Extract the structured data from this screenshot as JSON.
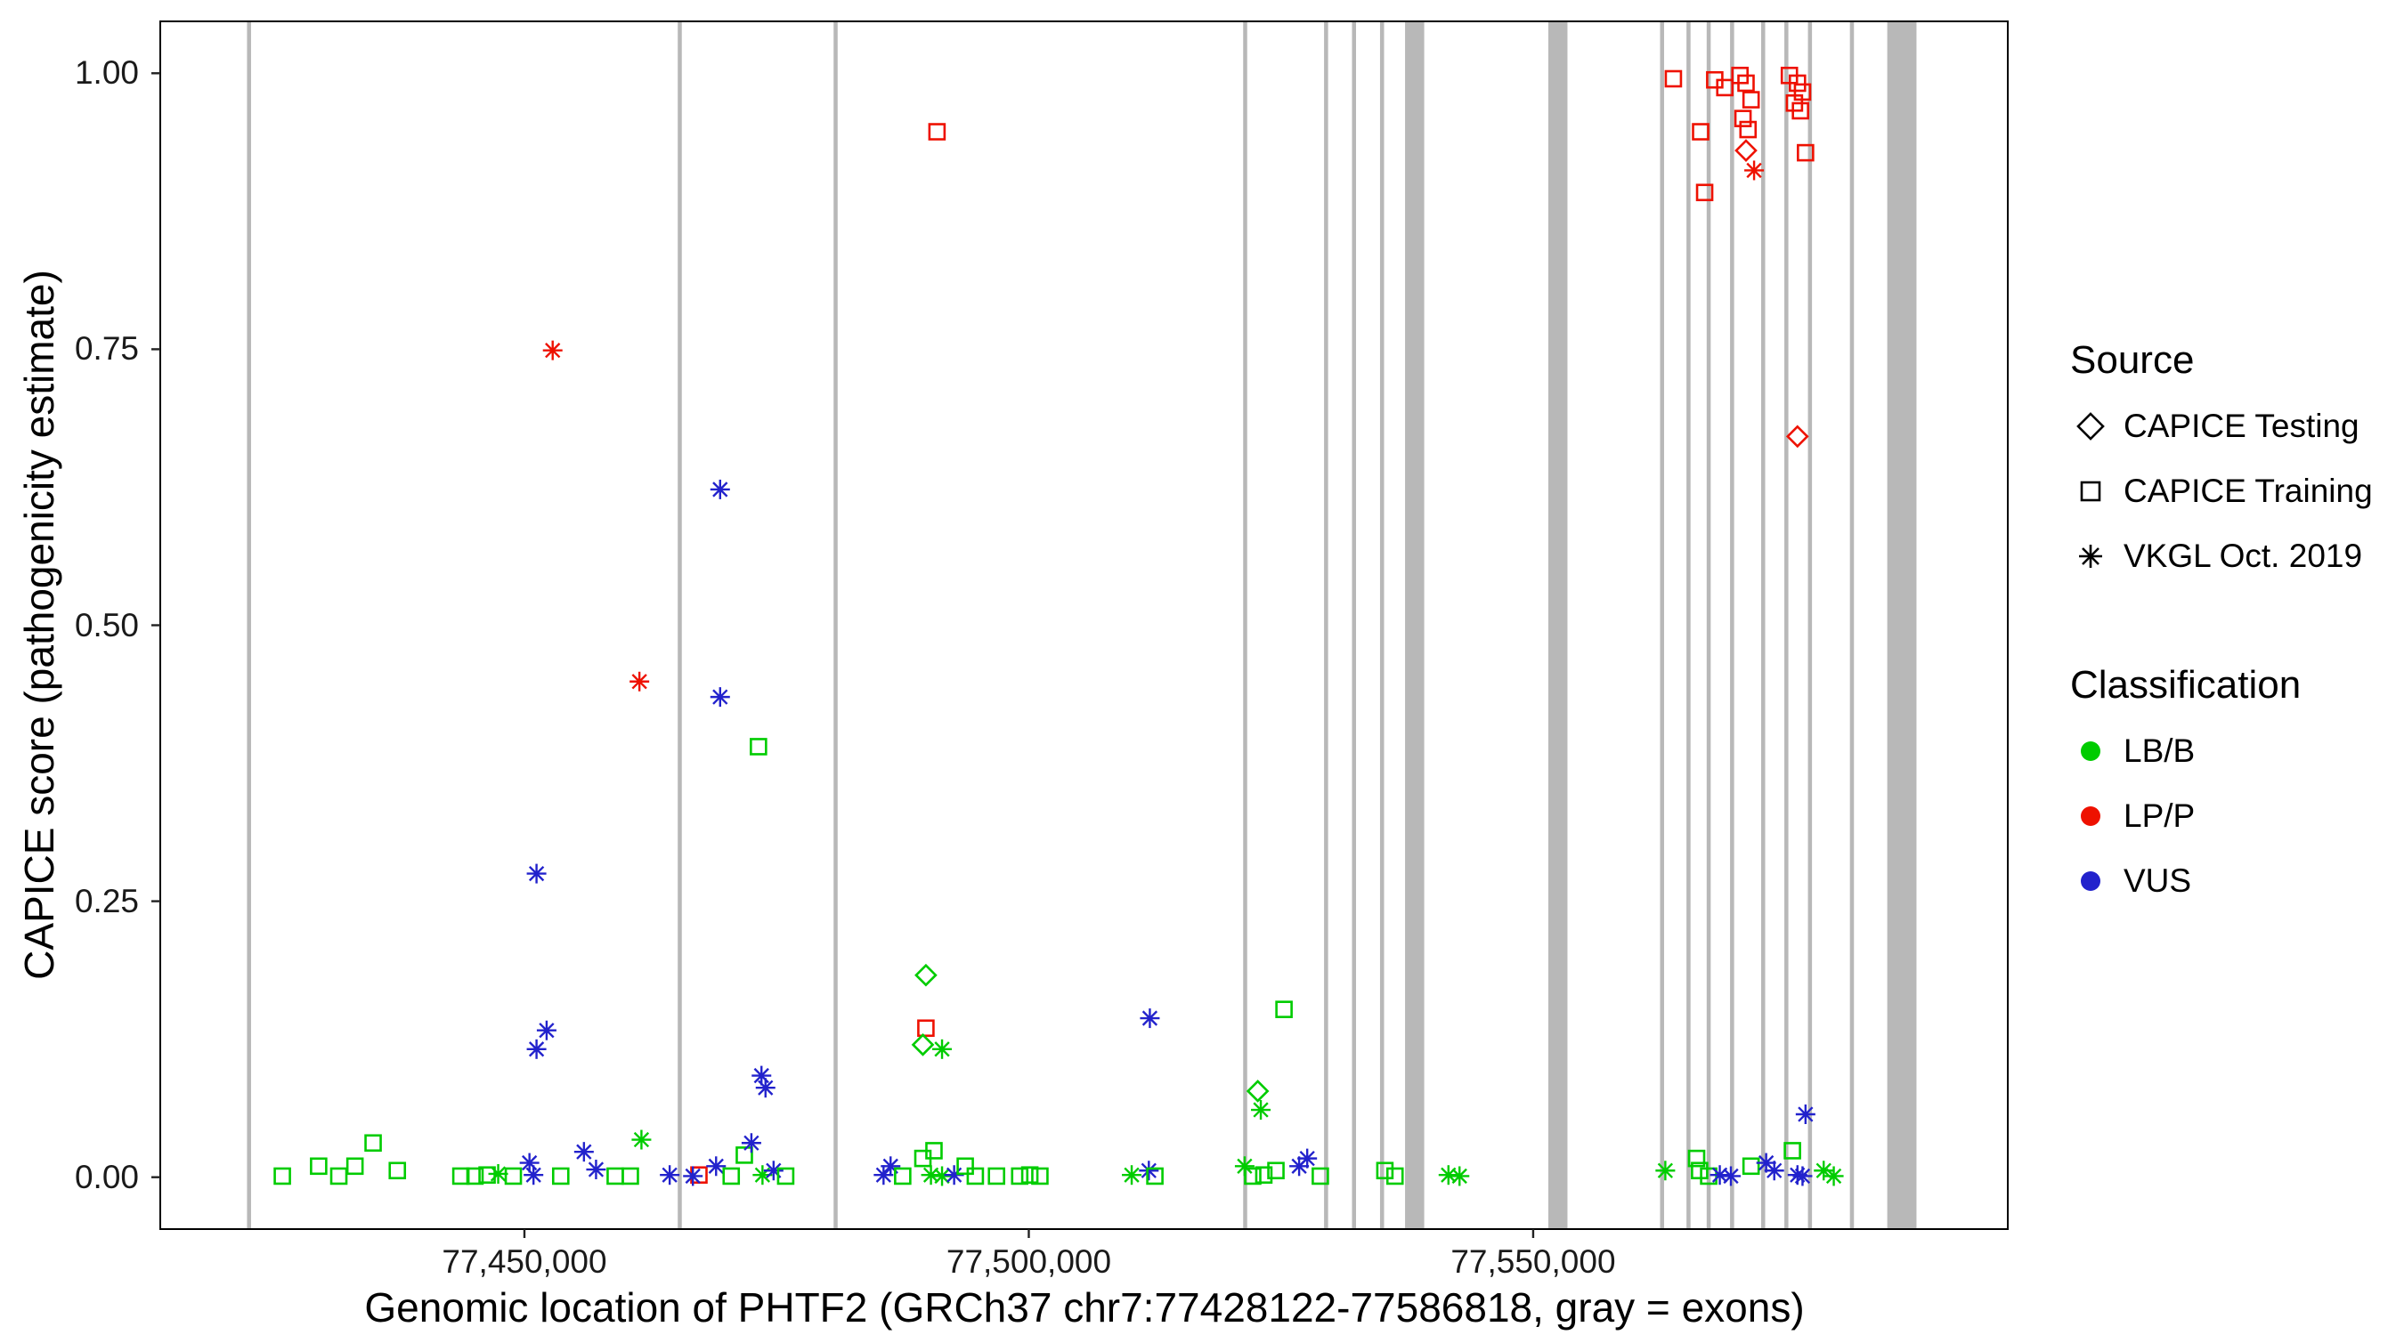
{
  "axes": {
    "x_label": "Genomic location of PHTF2 (GRCh37 chr7:77428122-77586818, gray = exons)",
    "y_label": "CAPICE score (pathogenicity estimate)",
    "x_ticks": [
      {
        "value": 77450000,
        "label": "77,450,000"
      },
      {
        "value": 77500000,
        "label": "77,500,000"
      },
      {
        "value": 77550000,
        "label": "77,550,000"
      }
    ],
    "y_ticks": [
      {
        "value": 0.0,
        "label": "0.00"
      },
      {
        "value": 0.25,
        "label": "0.25"
      },
      {
        "value": 0.5,
        "label": "0.50"
      },
      {
        "value": 0.75,
        "label": "0.75"
      },
      {
        "value": 1.0,
        "label": "1.00"
      }
    ]
  },
  "legend": {
    "source": {
      "title": "Source",
      "items": [
        {
          "label": "CAPICE Testing",
          "shape": "diamond"
        },
        {
          "label": "CAPICE Training",
          "shape": "square"
        },
        {
          "label": "VKGL Oct. 2019",
          "shape": "asterisk"
        }
      ]
    },
    "classification": {
      "title": "Classification",
      "items": [
        {
          "label": "LB/B",
          "color": "#00cc00"
        },
        {
          "label": "LP/P",
          "color": "#ee1100"
        },
        {
          "label": "VUS",
          "color": "#2222cc"
        }
      ]
    }
  },
  "chart_data": {
    "type": "scatter",
    "title": "",
    "xlabel": "Genomic location of PHTF2 (GRCh37 chr7:77428122-77586818, gray = exons)",
    "ylabel": "CAPICE score (pathogenicity estimate)",
    "x_domain": [
      77413900,
      77597050
    ],
    "y_domain": [
      -0.047,
      1.047
    ],
    "grid": false,
    "legend_position": "right",
    "colors": {
      "LB/B": "#00cc00",
      "LP/P": "#ee1100",
      "VUS": "#2222cc"
    },
    "shapes": {
      "testing": "diamond",
      "training": "square",
      "vkgl2019": "asterisk"
    },
    "exon_color": "#b8b8b8",
    "exons": [
      [
        77422500,
        77422900
      ],
      [
        77465200,
        77465600
      ],
      [
        77480650,
        77481050
      ],
      [
        77521250,
        77521650
      ],
      [
        77529270,
        77529670
      ],
      [
        77532040,
        77532440
      ],
      [
        77534820,
        77535220
      ],
      [
        77537300,
        77539200
      ],
      [
        77551500,
        77553400
      ],
      [
        77562580,
        77562980
      ],
      [
        77565200,
        77565600
      ],
      [
        77567200,
        77567600
      ],
      [
        77569520,
        77569920
      ],
      [
        77572600,
        77573000
      ],
      [
        77574900,
        77575300
      ],
      [
        77577240,
        77577640
      ],
      [
        77581400,
        77581800
      ],
      [
        77585100,
        77588000
      ]
    ],
    "point_format": [
      "x_genomic",
      "capice_score",
      "source",
      "classification"
    ],
    "points": [
      [
        77426000,
        0.001,
        "training",
        "LB/B"
      ],
      [
        77429600,
        0.01,
        "training",
        "LB/B"
      ],
      [
        77431600,
        0.001,
        "training",
        "LB/B"
      ],
      [
        77433200,
        0.01,
        "training",
        "LB/B"
      ],
      [
        77435000,
        0.031,
        "training",
        "LB/B"
      ],
      [
        77437400,
        0.006,
        "training",
        "LB/B"
      ],
      [
        77443700,
        0.001,
        "training",
        "LB/B"
      ],
      [
        77445100,
        0.001,
        "training",
        "LB/B"
      ],
      [
        77446300,
        0.002,
        "training",
        "LB/B"
      ],
      [
        77447400,
        0.003,
        "vkgl2019",
        "LB/B"
      ],
      [
        77448900,
        0.001,
        "training",
        "LB/B"
      ],
      [
        77450500,
        0.013,
        "vkgl2019",
        "VUS"
      ],
      [
        77450900,
        0.002,
        "vkgl2019",
        "VUS"
      ],
      [
        77453600,
        0.001,
        "training",
        "LB/B"
      ],
      [
        77455900,
        0.023,
        "vkgl2019",
        "VUS"
      ],
      [
        77457100,
        0.007,
        "vkgl2019",
        "VUS"
      ],
      [
        77459000,
        0.001,
        "training",
        "LB/B"
      ],
      [
        77460500,
        0.001,
        "training",
        "LB/B"
      ],
      [
        77461600,
        0.034,
        "vkgl2019",
        "LB/B"
      ],
      [
        77464400,
        0.002,
        "vkgl2019",
        "VUS"
      ],
      [
        77467300,
        0.002,
        "training",
        "LP/P"
      ],
      [
        77466700,
        0.001,
        "vkgl2019",
        "VUS"
      ],
      [
        77469000,
        0.01,
        "vkgl2019",
        "VUS"
      ],
      [
        77470500,
        0.001,
        "training",
        "LB/B"
      ],
      [
        77471800,
        0.02,
        "training",
        "LB/B"
      ],
      [
        77472500,
        0.031,
        "vkgl2019",
        "VUS"
      ],
      [
        77473600,
        0.002,
        "vkgl2019",
        "LB/B"
      ],
      [
        77474700,
        0.006,
        "vkgl2019",
        "VUS"
      ],
      [
        77475900,
        0.001,
        "training",
        "LB/B"
      ],
      [
        77485600,
        0.002,
        "vkgl2019",
        "VUS"
      ],
      [
        77486300,
        0.01,
        "vkgl2019",
        "VUS"
      ],
      [
        77487500,
        0.001,
        "training",
        "LB/B"
      ],
      [
        77489500,
        0.017,
        "training",
        "LB/B"
      ],
      [
        77490600,
        0.024,
        "training",
        "LB/B"
      ],
      [
        77490300,
        0.002,
        "vkgl2019",
        "LB/B"
      ],
      [
        77491400,
        0.001,
        "vkgl2019",
        "LB/B"
      ],
      [
        77492600,
        0.002,
        "vkgl2019",
        "VUS"
      ],
      [
        77493700,
        0.01,
        "training",
        "LB/B"
      ],
      [
        77494700,
        0.001,
        "training",
        "LB/B"
      ],
      [
        77496800,
        0.001,
        "training",
        "LB/B"
      ],
      [
        77499100,
        0.001,
        "training",
        "LB/B"
      ],
      [
        77500100,
        0.002,
        "training",
        "LB/B"
      ],
      [
        77501100,
        0.001,
        "training",
        "LB/B"
      ],
      [
        77510200,
        0.002,
        "vkgl2019",
        "LB/B"
      ],
      [
        77511900,
        0.006,
        "vkgl2019",
        "VUS"
      ],
      [
        77512500,
        0.001,
        "training",
        "LB/B"
      ],
      [
        77521400,
        0.01,
        "vkgl2019",
        "LB/B"
      ],
      [
        77522200,
        0.001,
        "training",
        "LB/B"
      ],
      [
        77523300,
        0.002,
        "training",
        "LB/B"
      ],
      [
        77524500,
        0.006,
        "training",
        "LB/B"
      ],
      [
        77526800,
        0.01,
        "vkgl2019",
        "VUS"
      ],
      [
        77527600,
        0.017,
        "vkgl2019",
        "VUS"
      ],
      [
        77528900,
        0.001,
        "training",
        "LB/B"
      ],
      [
        77535300,
        0.006,
        "training",
        "LB/B"
      ],
      [
        77536300,
        0.001,
        "training",
        "LB/B"
      ],
      [
        77541600,
        0.002,
        "vkgl2019",
        "LB/B"
      ],
      [
        77542700,
        0.001,
        "vkgl2019",
        "LB/B"
      ],
      [
        77563100,
        0.006,
        "vkgl2019",
        "LB/B"
      ],
      [
        77566200,
        0.017,
        "training",
        "LB/B"
      ],
      [
        77566500,
        0.006,
        "training",
        "LB/B"
      ],
      [
        77567400,
        0.001,
        "training",
        "LB/B"
      ],
      [
        77568500,
        0.002,
        "vkgl2019",
        "VUS"
      ],
      [
        77569600,
        0.001,
        "vkgl2019",
        "VUS"
      ],
      [
        77571600,
        0.01,
        "training",
        "LB/B"
      ],
      [
        77573100,
        0.013,
        "vkgl2019",
        "VUS"
      ],
      [
        77573900,
        0.006,
        "vkgl2019",
        "VUS"
      ],
      [
        77575700,
        0.024,
        "training",
        "LB/B"
      ],
      [
        77576200,
        0.002,
        "vkgl2019",
        "VUS"
      ],
      [
        77576700,
        0.001,
        "vkgl2019",
        "VUS"
      ],
      [
        77578800,
        0.006,
        "vkgl2019",
        "LB/B"
      ],
      [
        77579800,
        0.001,
        "vkgl2019",
        "LB/B"
      ],
      [
        77563900,
        0.995,
        "training",
        "LP/P"
      ],
      [
        77566600,
        0.947,
        "training",
        "LP/P"
      ],
      [
        77567000,
        0.892,
        "training",
        "LP/P"
      ],
      [
        77568000,
        0.994,
        "training",
        "LP/P"
      ],
      [
        77569000,
        0.987,
        "training",
        "LP/P"
      ],
      [
        77570500,
        0.998,
        "training",
        "LP/P"
      ],
      [
        77571100,
        0.991,
        "training",
        "LP/P"
      ],
      [
        77571600,
        0.976,
        "training",
        "LP/P"
      ],
      [
        77570800,
        0.959,
        "training",
        "LP/P"
      ],
      [
        77571300,
        0.949,
        "training",
        "LP/P"
      ],
      [
        77571100,
        0.93,
        "testing",
        "LP/P"
      ],
      [
        77571900,
        0.912,
        "vkgl2019",
        "LP/P"
      ],
      [
        77575400,
        0.998,
        "training",
        "LP/P"
      ],
      [
        77576200,
        0.991,
        "training",
        "LP/P"
      ],
      [
        77576700,
        0.983,
        "training",
        "LP/P"
      ],
      [
        77575900,
        0.973,
        "training",
        "LP/P"
      ],
      [
        77576500,
        0.966,
        "training",
        "LP/P"
      ],
      [
        77577000,
        0.928,
        "training",
        "LP/P"
      ],
      [
        77576200,
        0.671,
        "testing",
        "LP/P"
      ],
      [
        77452800,
        0.749,
        "vkgl2019",
        "LP/P"
      ],
      [
        77461400,
        0.449,
        "vkgl2019",
        "LP/P"
      ],
      [
        77469400,
        0.623,
        "vkgl2019",
        "VUS"
      ],
      [
        77469400,
        0.435,
        "vkgl2019",
        "VUS"
      ],
      [
        77451200,
        0.275,
        "vkgl2019",
        "VUS"
      ],
      [
        77452200,
        0.133,
        "vkgl2019",
        "VUS"
      ],
      [
        77451200,
        0.116,
        "vkgl2019",
        "VUS"
      ],
      [
        77473200,
        0.39,
        "training",
        "LB/B"
      ],
      [
        77473500,
        0.092,
        "vkgl2019",
        "VUS"
      ],
      [
        77473900,
        0.081,
        "vkgl2019",
        "VUS"
      ],
      [
        77490900,
        0.947,
        "training",
        "LP/P"
      ],
      [
        77489800,
        0.183,
        "testing",
        "LB/B"
      ],
      [
        77489800,
        0.135,
        "training",
        "LP/P"
      ],
      [
        77489500,
        0.12,
        "testing",
        "LB/B"
      ],
      [
        77491400,
        0.116,
        "vkgl2019",
        "LB/B"
      ],
      [
        77512000,
        0.144,
        "vkgl2019",
        "VUS"
      ],
      [
        77525300,
        0.152,
        "training",
        "LB/B"
      ],
      [
        77522700,
        0.078,
        "testing",
        "LB/B"
      ],
      [
        77523000,
        0.061,
        "vkgl2019",
        "LB/B"
      ],
      [
        77577000,
        0.057,
        "vkgl2019",
        "VUS"
      ]
    ]
  }
}
